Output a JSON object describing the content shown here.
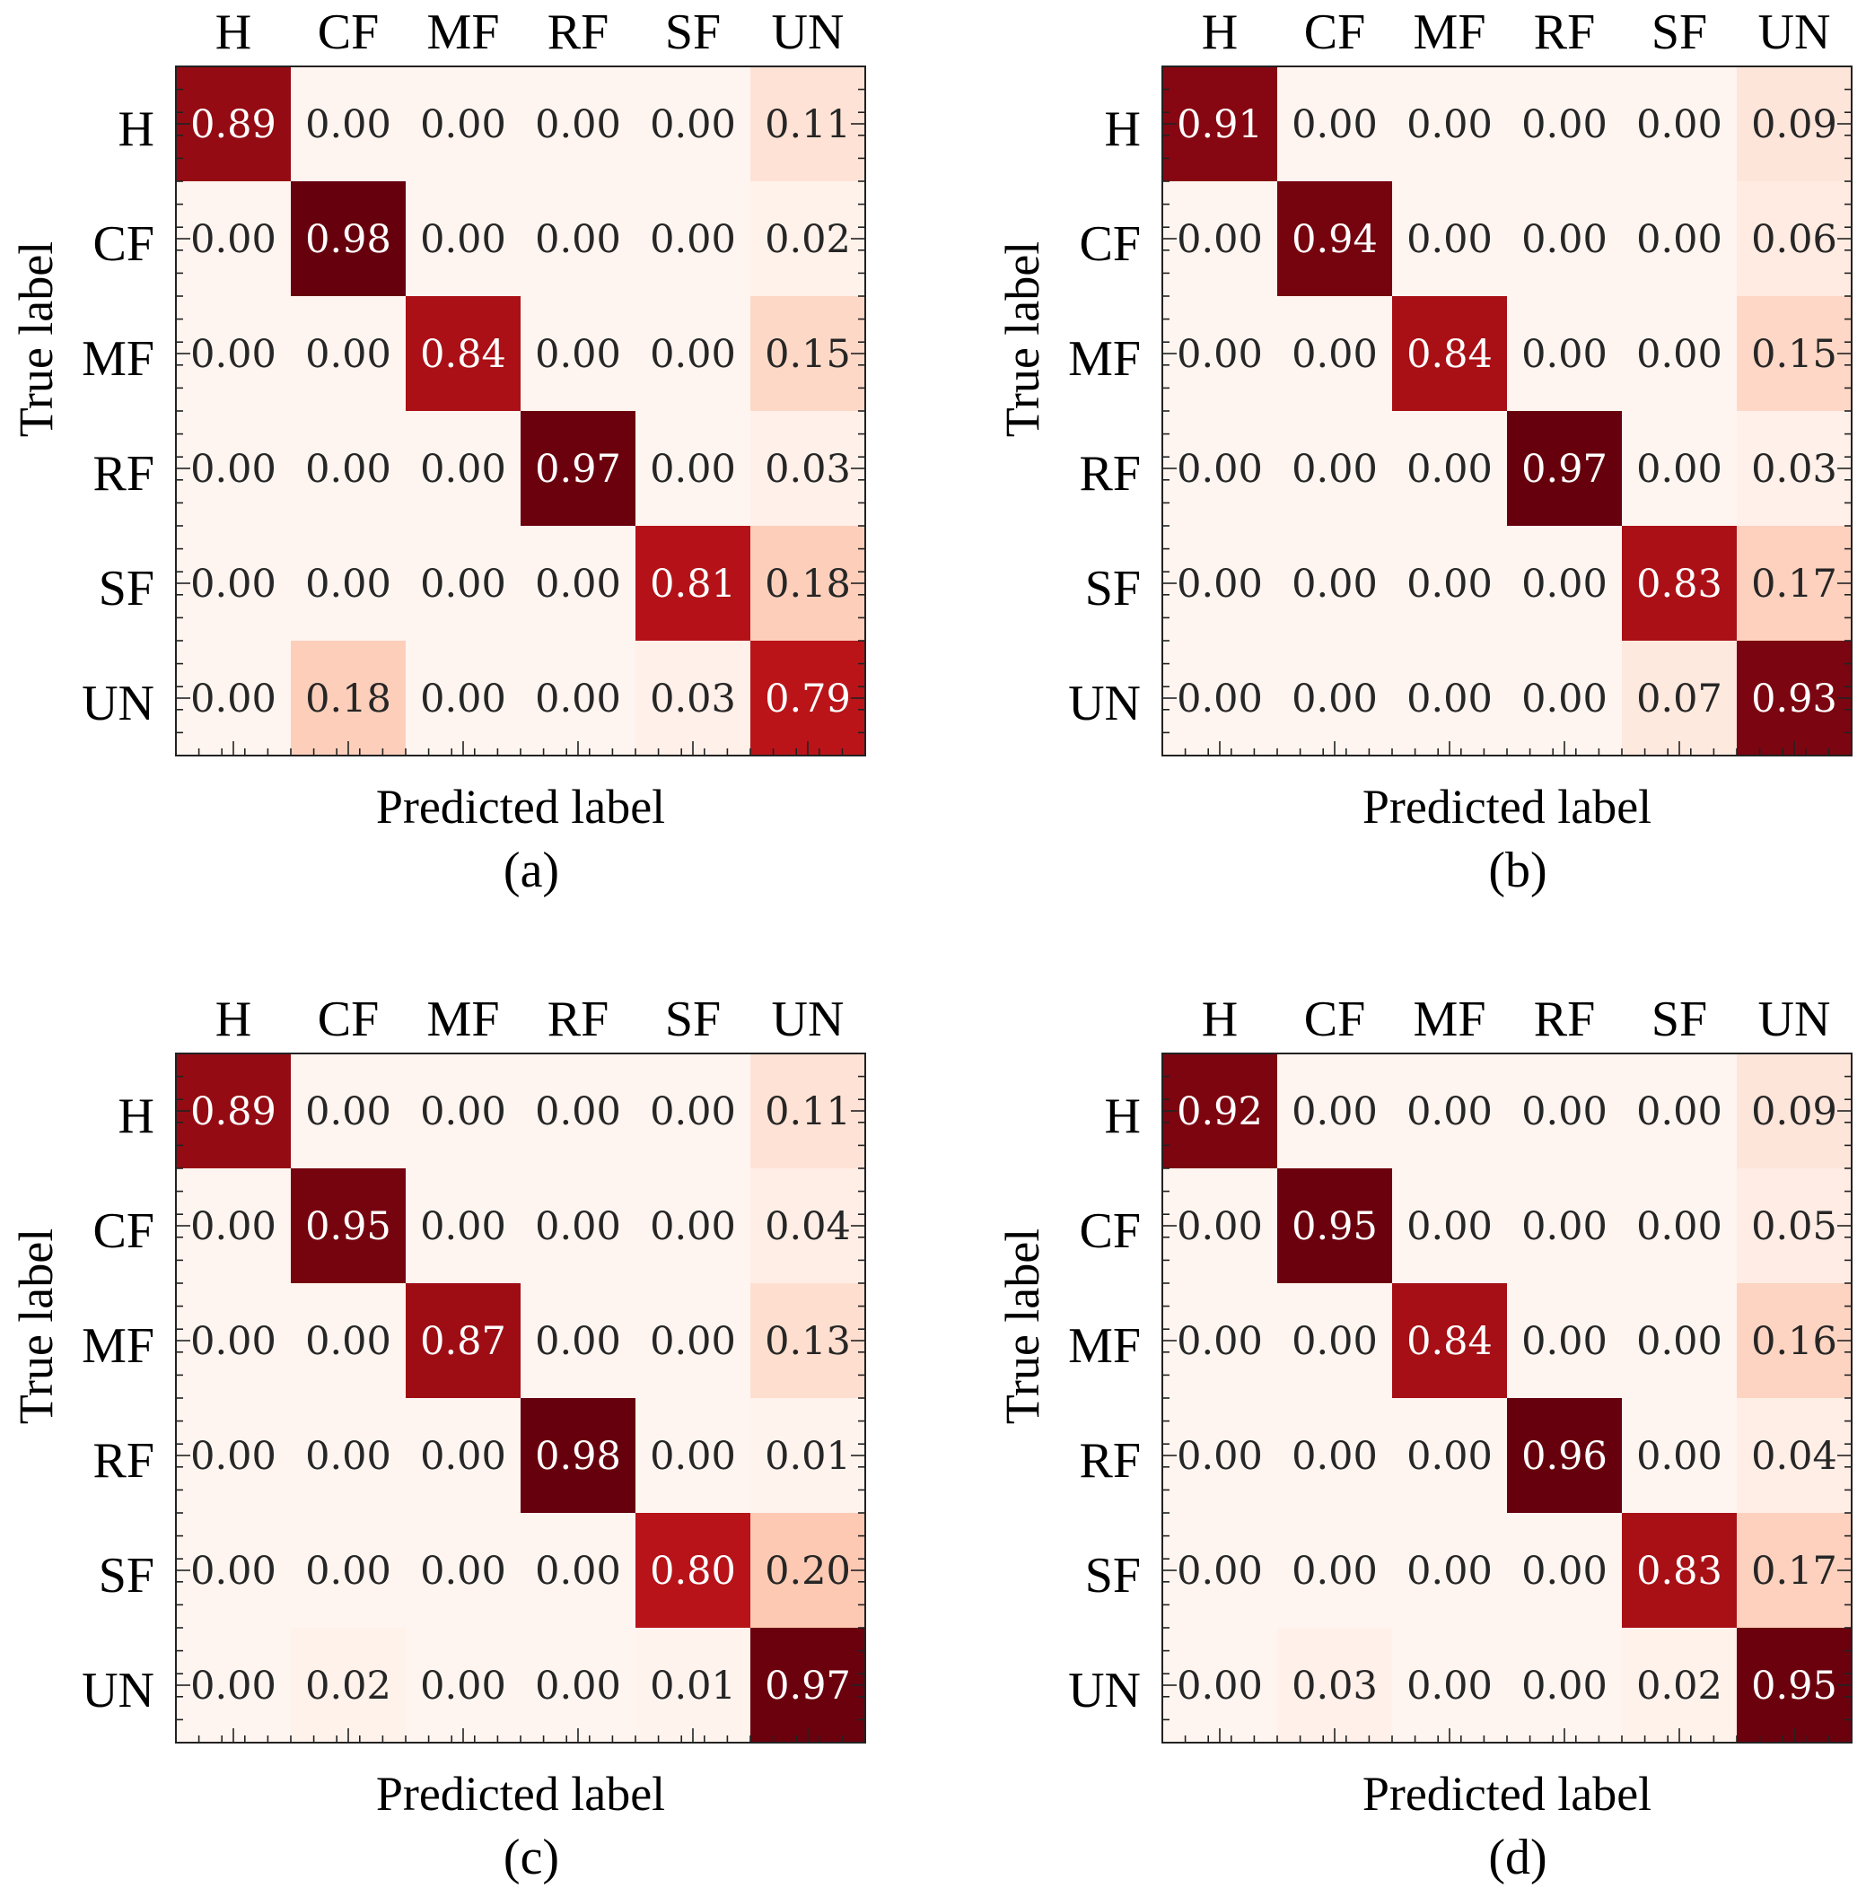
{
  "chart_data": [
    {
      "type": "heatmap",
      "caption": "(a)",
      "xlabel": "Predicted label",
      "ylabel": "True label",
      "x_categories": [
        "H",
        "CF",
        "MF",
        "RF",
        "SF",
        "UN"
      ],
      "y_categories": [
        "H",
        "CF",
        "MF",
        "RF",
        "SF",
        "UN"
      ],
      "values": [
        [
          0.89,
          0.0,
          0.0,
          0.0,
          0.0,
          0.11
        ],
        [
          0.0,
          0.98,
          0.0,
          0.0,
          0.0,
          0.02
        ],
        [
          0.0,
          0.0,
          0.84,
          0.0,
          0.0,
          0.15
        ],
        [
          0.0,
          0.0,
          0.0,
          0.97,
          0.0,
          0.03
        ],
        [
          0.0,
          0.0,
          0.0,
          0.0,
          0.81,
          0.18
        ],
        [
          0.0,
          0.18,
          0.0,
          0.0,
          0.03,
          0.79
        ]
      ],
      "colormap": "Reds"
    },
    {
      "type": "heatmap",
      "caption": "(b)",
      "xlabel": "Predicted label",
      "ylabel": "True label",
      "x_categories": [
        "H",
        "CF",
        "MF",
        "RF",
        "SF",
        "UN"
      ],
      "y_categories": [
        "H",
        "CF",
        "MF",
        "RF",
        "SF",
        "UN"
      ],
      "values": [
        [
          0.91,
          0.0,
          0.0,
          0.0,
          0.0,
          0.09
        ],
        [
          0.0,
          0.94,
          0.0,
          0.0,
          0.0,
          0.06
        ],
        [
          0.0,
          0.0,
          0.84,
          0.0,
          0.0,
          0.15
        ],
        [
          0.0,
          0.0,
          0.0,
          0.97,
          0.0,
          0.03
        ],
        [
          0.0,
          0.0,
          0.0,
          0.0,
          0.83,
          0.17
        ],
        [
          0.0,
          0.0,
          0.0,
          0.0,
          0.07,
          0.93
        ]
      ],
      "colormap": "Reds"
    },
    {
      "type": "heatmap",
      "caption": "(c)",
      "xlabel": "Predicted label",
      "ylabel": "True label",
      "x_categories": [
        "H",
        "CF",
        "MF",
        "RF",
        "SF",
        "UN"
      ],
      "y_categories": [
        "H",
        "CF",
        "MF",
        "RF",
        "SF",
        "UN"
      ],
      "values": [
        [
          0.89,
          0.0,
          0.0,
          0.0,
          0.0,
          0.11
        ],
        [
          0.0,
          0.95,
          0.0,
          0.0,
          0.0,
          0.04
        ],
        [
          0.0,
          0.0,
          0.87,
          0.0,
          0.0,
          0.13
        ],
        [
          0.0,
          0.0,
          0.0,
          0.98,
          0.0,
          0.01
        ],
        [
          0.0,
          0.0,
          0.0,
          0.0,
          0.8,
          0.2
        ],
        [
          0.0,
          0.02,
          0.0,
          0.0,
          0.01,
          0.97
        ]
      ],
      "colormap": "Reds"
    },
    {
      "type": "heatmap",
      "caption": "(d)",
      "xlabel": "Predicted label",
      "ylabel": "True label",
      "x_categories": [
        "H",
        "CF",
        "MF",
        "RF",
        "SF",
        "UN"
      ],
      "y_categories": [
        "H",
        "CF",
        "MF",
        "RF",
        "SF",
        "UN"
      ],
      "values": [
        [
          0.92,
          0.0,
          0.0,
          0.0,
          0.0,
          0.09
        ],
        [
          0.0,
          0.95,
          0.0,
          0.0,
          0.0,
          0.05
        ],
        [
          0.0,
          0.0,
          0.84,
          0.0,
          0.0,
          0.16
        ],
        [
          0.0,
          0.0,
          0.0,
          0.96,
          0.0,
          0.04
        ],
        [
          0.0,
          0.0,
          0.0,
          0.0,
          0.83,
          0.17
        ],
        [
          0.0,
          0.03,
          0.0,
          0.0,
          0.02,
          0.95
        ]
      ],
      "colormap": "Reds"
    }
  ]
}
